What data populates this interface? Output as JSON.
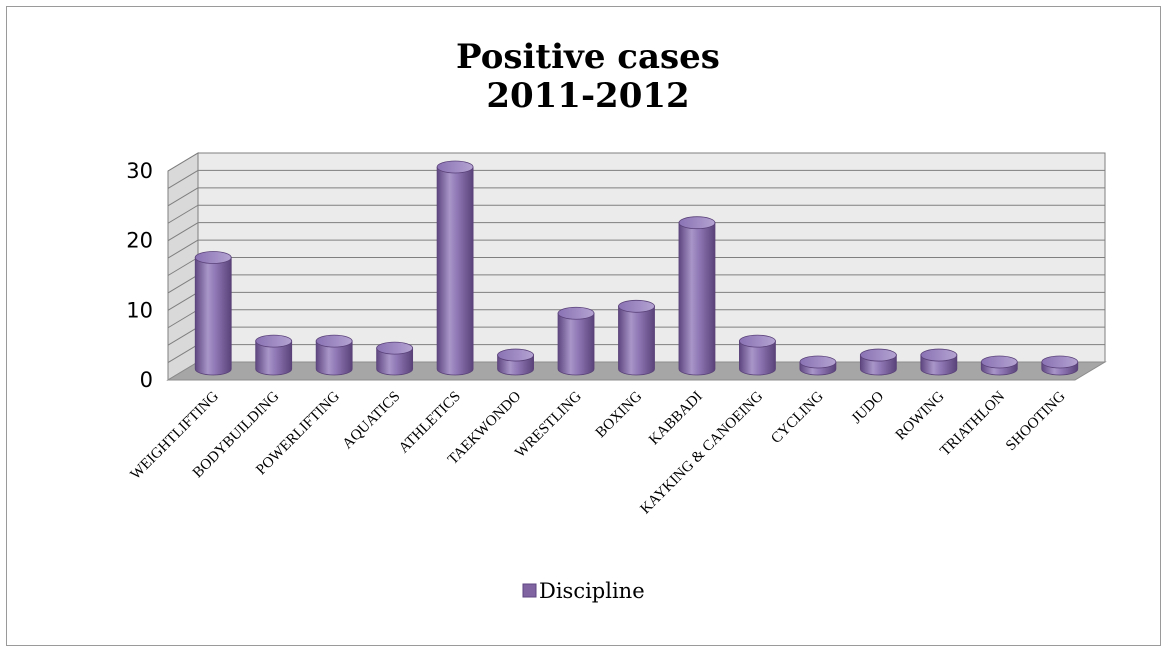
{
  "chart_data": {
    "type": "bar",
    "style": "3d-cylinder",
    "title_lines": [
      "Positive cases",
      "2011-2012"
    ],
    "categories": [
      "WEIGHTLIFTING",
      "BODYBUILDING",
      "POWERLIFTING",
      "AQUATICS",
      "ATHLETICS",
      "TAEKWONDO",
      "WRESTLING",
      "BOXING",
      "KABBADI",
      "KAYKING & CANOEING",
      "CYCLING",
      "JUDO",
      "ROWING",
      "TRIATHLON",
      "SHOOTING"
    ],
    "series": [
      {
        "name": "Discipline",
        "values": [
          16,
          4,
          4,
          3,
          29,
          2,
          8,
          9,
          21,
          4,
          1,
          2,
          2,
          1,
          1
        ]
      }
    ],
    "yticks": [
      "0",
      "10",
      "20",
      "30"
    ],
    "ylim": [
      0,
      30
    ],
    "grid": true,
    "legend_position": "bottom",
    "colors": {
      "bar": "#8064a2",
      "bar_light": "#a996c8",
      "bar_dark": "#5e4680",
      "floor": "#a6a6a6",
      "wall": "#ebebeb",
      "grid": "#7f7f7f"
    }
  }
}
